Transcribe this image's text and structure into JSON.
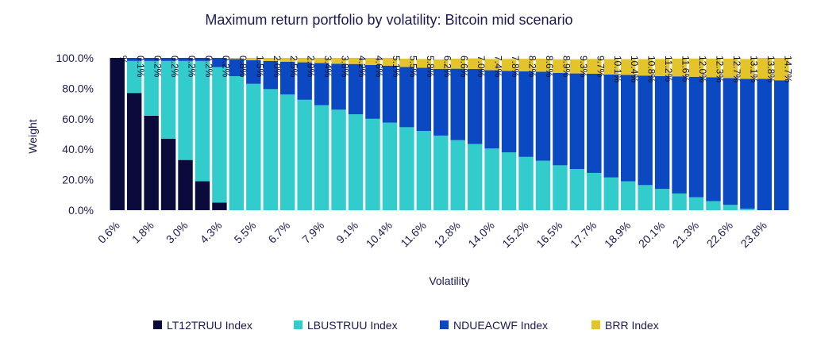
{
  "chart_data": {
    "type": "bar",
    "stacked": true,
    "title": "Maximum return portfolio by volatility: Bitcoin mid scenario",
    "xlabel": "Volatility",
    "ylabel": "Weight",
    "ylim": [
      0,
      100
    ],
    "y_ticks": [
      "0.0%",
      "20.0%",
      "40.0%",
      "60.0%",
      "80.0%",
      "100.0%"
    ],
    "x_tick_labels": [
      "0.6%",
      "1.8%",
      "3.0%",
      "4.3%",
      "5.5%",
      "6.7%",
      "7.9%",
      "9.1%",
      "10.4%",
      "11.6%",
      "12.8%",
      "14.0%",
      "15.2%",
      "16.5%",
      "17.7%",
      "18.9%",
      "20.1%",
      "21.3%",
      "22.6%",
      "23.8%"
    ],
    "legend_position": "bottom",
    "series": [
      {
        "name": "LT12TRUU Index",
        "color": "#0b0b3b",
        "values": [
          100,
          77,
          62,
          47,
          33,
          19,
          5,
          0,
          0,
          0,
          0,
          0,
          0,
          0,
          0,
          0,
          0,
          0,
          0,
          0,
          0,
          0,
          0,
          0,
          0,
          0,
          0,
          0,
          0,
          0,
          0,
          0,
          0,
          0,
          0,
          0,
          0,
          0,
          0,
          0
        ]
      },
      {
        "name": "LBUSTRUU Index",
        "color": "#33cccc",
        "values": [
          0,
          21,
          36,
          51,
          65,
          79,
          89,
          88,
          83,
          79.5,
          76,
          72.5,
          69,
          66,
          63,
          60,
          57.5,
          54.5,
          52,
          49,
          46,
          43.5,
          40.5,
          38,
          35,
          32.5,
          29.5,
          27,
          24.5,
          21.5,
          19,
          16.5,
          14,
          11,
          8.5,
          6,
          3.5,
          1,
          0,
          0
        ]
      },
      {
        "name": "NDUEACWF Index",
        "color": "#0a49c2",
        "values": [
          0,
          2,
          2,
          2,
          2,
          2,
          6,
          11.2,
          15.5,
          18.5,
          21.5,
          24.6,
          27.6,
          30.2,
          33,
          35.4,
          37.4,
          39.5,
          41.5,
          43.8,
          46.9,
          49.2,
          51.4,
          53.5,
          56.2,
          58.4,
          60.7,
          62.8,
          65.1,
          67.6,
          69.8,
          71.9,
          74.1,
          76.9,
          79.1,
          81.3,
          83.3,
          85.2,
          86.2,
          85.3
        ]
      },
      {
        "name": "BRR Index",
        "color": "#e3c42b",
        "values": [
          0,
          0.1,
          0.2,
          0.2,
          0.2,
          0.2,
          0.2,
          0.8,
          1.5,
          2.0,
          2.5,
          2.9,
          3.4,
          3.8,
          4.2,
          4.6,
          5.1,
          5.5,
          5.8,
          6.2,
          6.6,
          7.0,
          7.4,
          7.8,
          8.2,
          8.6,
          8.9,
          9.3,
          9.7,
          10.1,
          10.4,
          10.8,
          11.2,
          11.6,
          12.0,
          12.3,
          12.7,
          13.1,
          13.8,
          14.7
        ]
      }
    ],
    "bar_labels": [
      "%",
      "0.1%",
      "0.2%",
      "0.2%",
      "0.2%",
      "0.2%",
      "0.2%",
      "0.8%",
      "1.5%",
      "2.0%",
      "2.5%",
      "2.9%",
      "3.4%",
      "3.8%",
      "4.2%",
      "4.6%",
      "5.1%",
      "5.5%",
      "5.8%",
      "6.2%",
      "6.6%",
      "7.0%",
      "7.4%",
      "7.8%",
      "8.2%",
      "8.6%",
      "8.9%",
      "9.3%",
      "9.7%",
      "10.1%",
      "10.4%",
      "10.8%",
      "11.2%",
      "11.6%",
      "12.0%",
      "12.3%",
      "12.7%",
      "13.1%",
      "13.8%",
      "14.7%"
    ]
  }
}
